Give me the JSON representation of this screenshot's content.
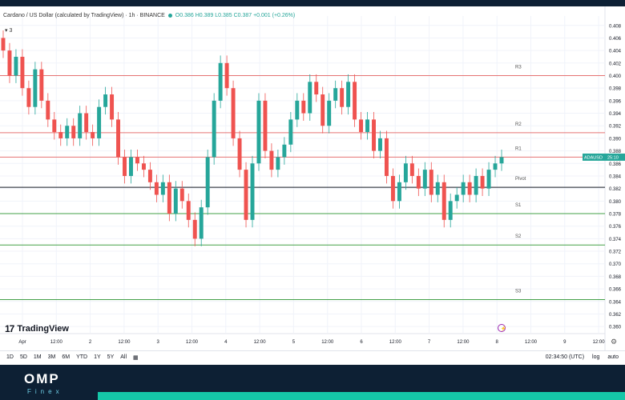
{
  "legend": {
    "title": "Cardano / US Dollar (calculated by TradingView) · 1h · BINANCE",
    "ohlc": "O0.386 H0.389 L0.385 C0.387 +0.001 (+0.26%)",
    "counter": "3"
  },
  "price_axis": {
    "ticks": [
      "0.408",
      "0.406",
      "0.404",
      "0.402",
      "0.400",
      "0.398",
      "0.396",
      "0.394",
      "0.392",
      "0.390",
      "0.388",
      "0.386",
      "0.384",
      "0.382",
      "0.380",
      "0.378",
      "0.376",
      "0.374",
      "0.372",
      "0.370",
      "0.368",
      "0.366",
      "0.364",
      "0.362",
      "0.360"
    ],
    "current_tag": "ADAUSD",
    "current_time": "25:10"
  },
  "time_axis": {
    "ticks": [
      "Apr",
      "12:00",
      "2",
      "12:00",
      "3",
      "12:00",
      "4",
      "12:00",
      "5",
      "12:00",
      "6",
      "12:00",
      "7",
      "12:00",
      "8",
      "12:00",
      "9",
      "12:00"
    ]
  },
  "levels": [
    {
      "label": "R3",
      "value": 0.4,
      "color": "#e57373"
    },
    {
      "label": "R2",
      "value": 0.3909,
      "color": "#e57373"
    },
    {
      "label": "R1",
      "value": 0.387,
      "color": "#e57373"
    },
    {
      "label": "Pivot",
      "value": 0.3822,
      "color": "#131722"
    },
    {
      "label": "S1",
      "value": 0.378,
      "color": "#43a047"
    },
    {
      "label": "S2",
      "value": 0.373,
      "color": "#43a047"
    },
    {
      "label": "S3",
      "value": 0.3643,
      "color": "#43a047"
    }
  ],
  "brand": {
    "tradingview": "TradingView",
    "logo_mark": "17",
    "site_name": "OMP",
    "site_sub": "Finex"
  },
  "toolbar": {
    "ranges": [
      "1D",
      "5D",
      "1M",
      "3M",
      "6M",
      "YTD",
      "1Y",
      "5Y",
      "All"
    ],
    "clock": "02:34:50 (UTC)",
    "log": "log",
    "auto": "auto"
  },
  "colors": {
    "up": "#26a69a",
    "down": "#ef5350",
    "support": "#43a047",
    "resistance": "#e57373"
  },
  "chart_data": {
    "type": "candlestick",
    "symbol": "ADAUSD",
    "ylim": [
      0.359,
      0.4095
    ],
    "candles": [
      [
        0.406,
        0.404
      ],
      [
        0.404,
        0.4
      ],
      [
        0.4,
        0.403
      ],
      [
        0.403,
        0.398
      ],
      [
        0.398,
        0.395
      ],
      [
        0.395,
        0.401
      ],
      [
        0.401,
        0.396
      ],
      [
        0.396,
        0.393
      ],
      [
        0.393,
        0.391
      ],
      [
        0.391,
        0.39
      ],
      [
        0.39,
        0.392
      ],
      [
        0.392,
        0.39
      ],
      [
        0.39,
        0.394
      ],
      [
        0.394,
        0.391
      ],
      [
        0.391,
        0.39
      ],
      [
        0.39,
        0.395
      ],
      [
        0.395,
        0.397
      ],
      [
        0.397,
        0.393
      ],
      [
        0.393,
        0.387
      ],
      [
        0.387,
        0.384
      ],
      [
        0.384,
        0.387
      ],
      [
        0.387,
        0.386
      ],
      [
        0.386,
        0.385
      ],
      [
        0.385,
        0.383
      ],
      [
        0.383,
        0.381
      ],
      [
        0.381,
        0.383
      ],
      [
        0.383,
        0.378
      ],
      [
        0.378,
        0.382
      ],
      [
        0.382,
        0.38
      ],
      [
        0.38,
        0.377
      ],
      [
        0.377,
        0.374
      ],
      [
        0.374,
        0.379
      ],
      [
        0.379,
        0.387
      ],
      [
        0.387,
        0.396
      ],
      [
        0.396,
        0.402
      ],
      [
        0.402,
        0.398
      ],
      [
        0.398,
        0.39
      ],
      [
        0.39,
        0.385
      ],
      [
        0.385,
        0.377
      ],
      [
        0.377,
        0.386
      ],
      [
        0.386,
        0.396
      ],
      [
        0.396,
        0.388
      ],
      [
        0.388,
        0.385
      ],
      [
        0.385,
        0.387
      ],
      [
        0.387,
        0.389
      ],
      [
        0.389,
        0.393
      ],
      [
        0.393,
        0.396
      ],
      [
        0.396,
        0.394
      ],
      [
        0.394,
        0.399
      ],
      [
        0.399,
        0.397
      ],
      [
        0.397,
        0.392
      ],
      [
        0.392,
        0.396
      ],
      [
        0.396,
        0.398
      ],
      [
        0.398,
        0.395
      ],
      [
        0.395,
        0.399
      ],
      [
        0.399,
        0.393
      ],
      [
        0.393,
        0.391
      ],
      [
        0.391,
        0.393
      ],
      [
        0.393,
        0.388
      ],
      [
        0.388,
        0.39
      ],
      [
        0.39,
        0.384
      ],
      [
        0.384,
        0.38
      ],
      [
        0.38,
        0.383
      ],
      [
        0.383,
        0.386
      ],
      [
        0.386,
        0.384
      ],
      [
        0.384,
        0.382
      ],
      [
        0.382,
        0.385
      ],
      [
        0.385,
        0.381
      ],
      [
        0.381,
        0.383
      ],
      [
        0.383,
        0.377
      ],
      [
        0.377,
        0.38
      ],
      [
        0.38,
        0.381
      ],
      [
        0.381,
        0.383
      ],
      [
        0.383,
        0.381
      ],
      [
        0.381,
        0.384
      ],
      [
        0.384,
        0.382
      ],
      [
        0.382,
        0.385
      ],
      [
        0.385,
        0.386
      ],
      [
        0.386,
        0.387
      ]
    ]
  }
}
